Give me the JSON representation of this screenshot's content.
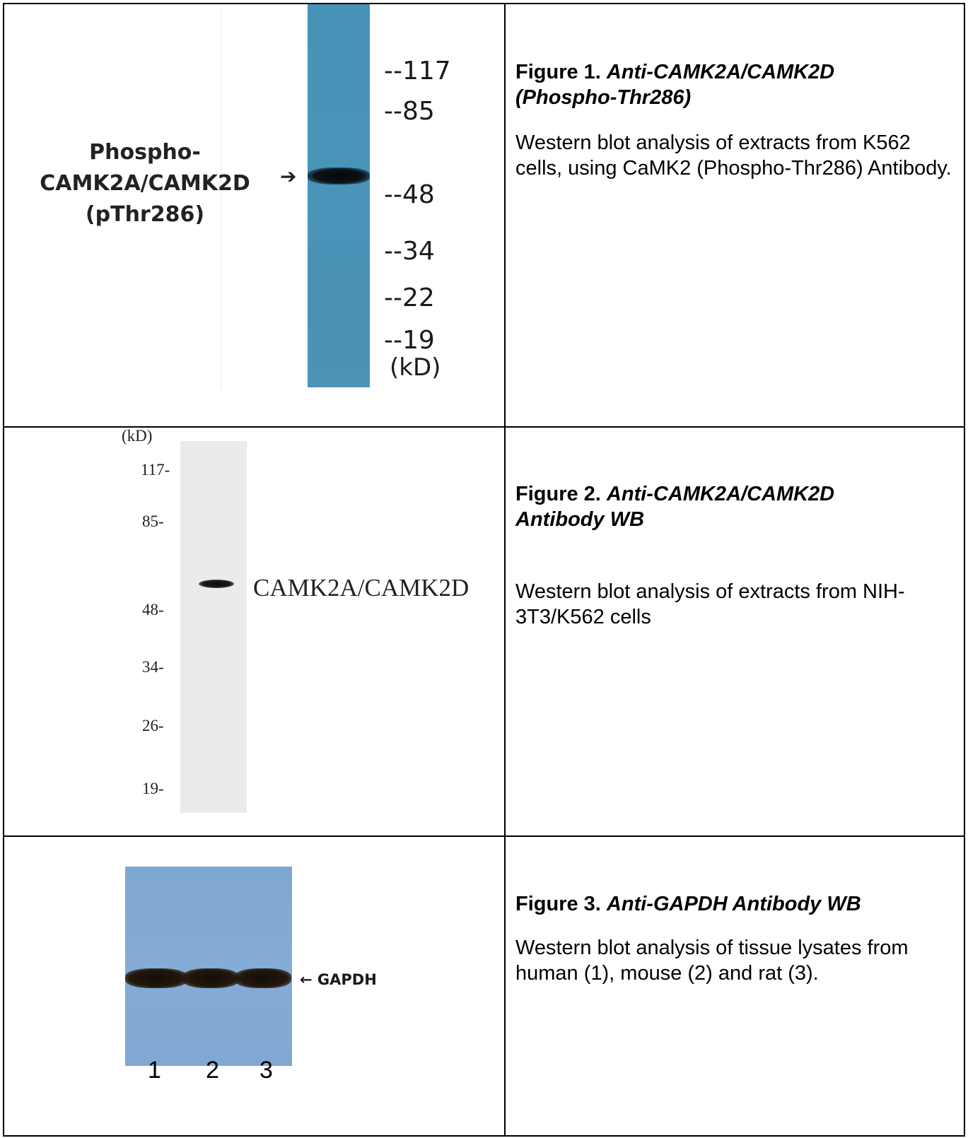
{
  "figure1": {
    "title_prefix": "Figure 1.",
    "title_italic_line1": "Anti-CAMK2A/CAMK2D",
    "title_italic_line2": "(Phospho-Thr286)",
    "description": "Western blot analysis of extracts from K562 cells, using CaMK2 (Phospho-Thr286) Antibody.",
    "blot": {
      "band_label_lines": [
        "Phospho-",
        "CAMK2A/CAMK2D",
        "(pThr286)"
      ],
      "arrow": "➔",
      "markers": [
        "--117",
        "--85",
        "--48",
        "--34",
        "--22",
        "--19"
      ],
      "unit": "(kD)"
    }
  },
  "figure2": {
    "title_prefix": "Figure 2.",
    "title_italic_line1": "Anti-CAMK2A/CAMK2D",
    "title_italic_line2": "Antibody WB",
    "description": "Western blot analysis of extracts from NIH-3T3/K562 cells",
    "blot": {
      "unit": "(kD)",
      "markers": [
        "117-",
        "85-",
        "48-",
        "34-",
        "26-",
        "19-"
      ],
      "band_label": "CAMK2A/CAMK2D"
    }
  },
  "figure3": {
    "title_prefix": "Figure 3.",
    "title_italic": "Anti-GAPDH Antibody WB",
    "description": "Western blot analysis of tissue lysates from human (1), mouse (2) and rat (3).",
    "blot": {
      "band_label": "← GAPDH",
      "lanes": [
        "1",
        "2",
        "3"
      ]
    }
  }
}
